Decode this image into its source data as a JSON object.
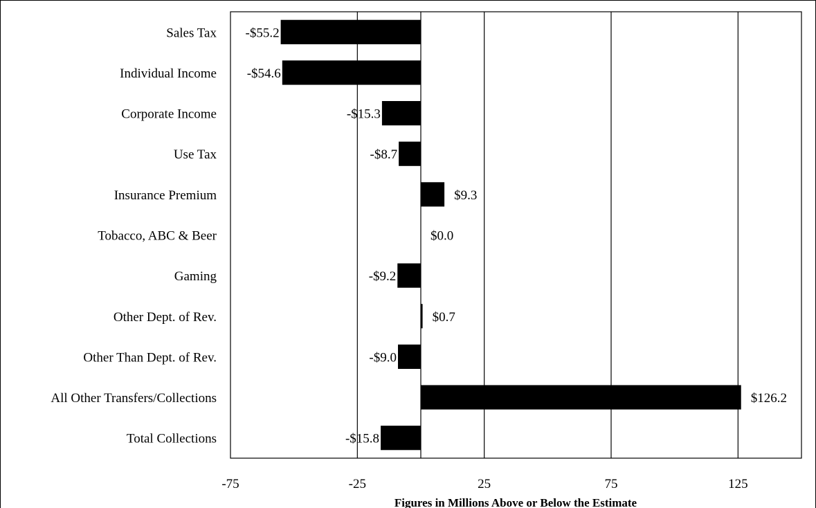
{
  "chart_data": {
    "type": "bar",
    "orientation": "horizontal",
    "categories": [
      "Sales Tax",
      "Individual Income",
      "Corporate Income",
      "Use Tax",
      "Insurance Premium",
      "Tobacco, ABC & Beer",
      "Gaming",
      "Other Dept. of Rev.",
      "Other Than Dept. of Rev.",
      "All Other Transfers/Collections",
      "Total Collections"
    ],
    "values": [
      -55.2,
      -54.6,
      -15.3,
      -8.7,
      9.3,
      0.0,
      -9.2,
      0.7,
      -9.0,
      126.2,
      -15.8
    ],
    "data_labels": [
      "-$55.2",
      "-$54.6",
      "-$15.3",
      "-$8.7",
      "$9.3",
      "$0.0",
      "-$9.2",
      "$0.7",
      "-$9.0",
      "$126.2",
      "-$15.8"
    ],
    "xlim": [
      -75,
      150
    ],
    "xticks": [
      -75,
      -25,
      25,
      75,
      125
    ],
    "xtick_labels": [
      "-75",
      "-25",
      "25",
      "75",
      "125"
    ],
    "xlabel": "Figures in Millions Above or Below the Estimate",
    "ylabel": "",
    "title": "",
    "grid": true,
    "bar_color": "#000000"
  }
}
